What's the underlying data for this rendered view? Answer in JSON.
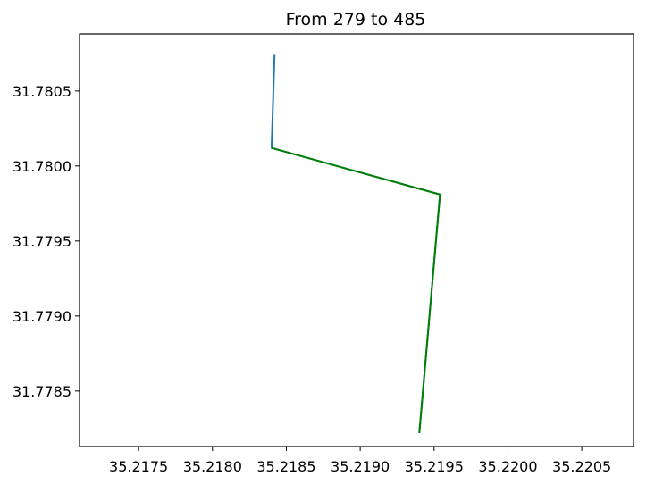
{
  "chart_data": {
    "type": "line",
    "title": "From 279 to 485",
    "xlabel": "",
    "ylabel": "",
    "xlim": [
      35.2171,
      35.22085
    ],
    "ylim": [
      31.77813,
      31.78088
    ],
    "x_ticks": [
      35.2175,
      35.218,
      35.2185,
      35.219,
      35.2195,
      35.22,
      35.2205
    ],
    "x_tick_labels": [
      "35.2175",
      "35.2180",
      "35.2185",
      "35.2190",
      "35.2195",
      "35.2200",
      "35.2205"
    ],
    "y_ticks": [
      31.7805,
      31.78,
      31.7795,
      31.779,
      31.7785
    ],
    "y_tick_labels": [
      "31.7805",
      "31.7800",
      "31.7795",
      "31.7790",
      "31.7785"
    ],
    "grid": false,
    "series": [
      {
        "color": "#1f77b4",
        "x": [
          35.21842,
          35.2184,
          35.21954,
          35.2194
        ],
        "y": [
          31.78074,
          31.78012,
          31.77981,
          31.77822
        ]
      },
      {
        "color": "#008000",
        "x": [
          35.2184,
          35.21954,
          35.2194
        ],
        "y": [
          31.78012,
          31.77981,
          31.77822
        ]
      }
    ]
  }
}
